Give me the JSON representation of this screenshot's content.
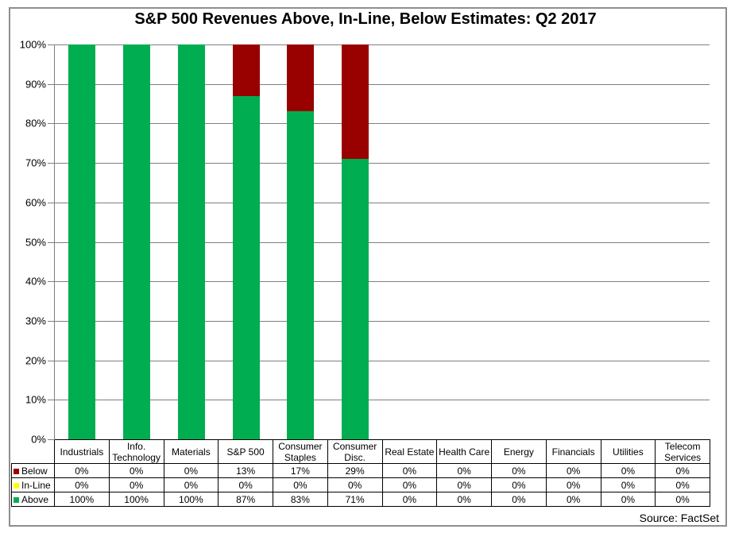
{
  "title": "S&P 500 Revenues Above, In-Line, Below Estimates: Q2 2017",
  "source_note": "Source: FactSet",
  "y_axis_labels": [
    "100%",
    "90%",
    "80%",
    "70%",
    "60%",
    "50%",
    "40%",
    "30%",
    "20%",
    "10%",
    "0%"
  ],
  "colors": {
    "above_green": "#00ad50",
    "inline_yellow": "#ffff00",
    "below_dark_red": "#990000",
    "gridline_gray": "#7f7f7f",
    "frame_gray": "#8e8e8e",
    "table_border_black": "#000000"
  },
  "chart_data": {
    "type": "bar",
    "stacked": true,
    "title": "S&P 500 Revenues Above, In-Line, Below Estimates: Q2 2017",
    "xlabel": "",
    "ylabel": "",
    "ylim": [
      0,
      100
    ],
    "y_tick_step": 10,
    "y_tick_format": "percent",
    "grid": true,
    "legend_position": "data-table-left",
    "categories": [
      "Industrials",
      "Info. Technology",
      "Materials",
      "S&P 500",
      "Consumer Staples",
      "Consumer Disc.",
      "Real Estate",
      "Health Care",
      "Energy",
      "Financials",
      "Utilities",
      "Telecom Services"
    ],
    "series": [
      {
        "name": "Below",
        "color": "#990000",
        "values": [
          0,
          0,
          0,
          13,
          17,
          29,
          0,
          0,
          0,
          0,
          0,
          0
        ]
      },
      {
        "name": "In-Line",
        "color": "#ffff00",
        "values": [
          0,
          0,
          0,
          0,
          0,
          0,
          0,
          0,
          0,
          0,
          0,
          0
        ]
      },
      {
        "name": "Above",
        "color": "#00ad50",
        "values": [
          100,
          100,
          100,
          87,
          83,
          71,
          0,
          0,
          0,
          0,
          0,
          0
        ]
      }
    ]
  }
}
